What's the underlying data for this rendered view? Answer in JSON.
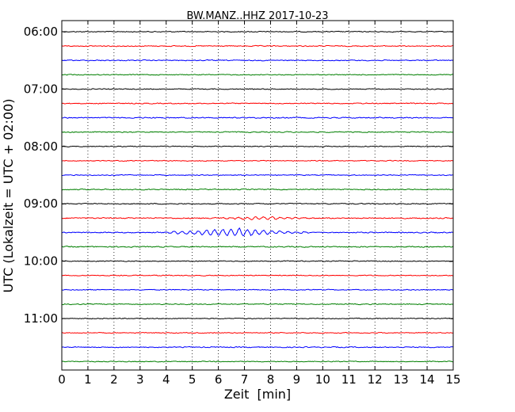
{
  "chart_data": {
    "type": "line",
    "title": "BW.MANZ..HHZ 2017-10-23",
    "xlabel": "Zeit  [min]",
    "ylabel": "UTC (Lokalzeit = UTC + 02:00)",
    "xlim": [
      0,
      15
    ],
    "x_ticks": [
      "0",
      "1",
      "2",
      "3",
      "4",
      "5",
      "6",
      "7",
      "8",
      "9",
      "10",
      "11",
      "12",
      "13",
      "14",
      "15"
    ],
    "y_tick_labels": [
      "06:00",
      "07:00",
      "08:00",
      "09:00",
      "10:00",
      "11:00"
    ],
    "grid": "vertical dotted at each minute",
    "trace_colors": [
      "#000000",
      "#ff0000",
      "#0000ff",
      "#007f00"
    ],
    "traces": [
      {
        "start": "06:00",
        "color": "#000000",
        "amplitude": 0.8
      },
      {
        "start": "06:15",
        "color": "#ff0000",
        "amplitude": 0.9
      },
      {
        "start": "06:30",
        "color": "#0000ff",
        "amplitude": 0.9
      },
      {
        "start": "06:45",
        "color": "#007f00",
        "amplitude": 0.8
      },
      {
        "start": "07:00",
        "color": "#000000",
        "amplitude": 0.8
      },
      {
        "start": "07:15",
        "color": "#ff0000",
        "amplitude": 0.9
      },
      {
        "start": "07:30",
        "color": "#0000ff",
        "amplitude": 1.0
      },
      {
        "start": "07:45",
        "color": "#007f00",
        "amplitude": 0.9
      },
      {
        "start": "08:00",
        "color": "#000000",
        "amplitude": 0.8
      },
      {
        "start": "08:15",
        "color": "#ff0000",
        "amplitude": 0.8
      },
      {
        "start": "08:30",
        "color": "#0000ff",
        "amplitude": 0.8
      },
      {
        "start": "08:45",
        "color": "#007f00",
        "amplitude": 0.9
      },
      {
        "start": "09:00",
        "color": "#000000",
        "amplitude": 0.9
      },
      {
        "start": "09:15",
        "color": "#ff0000",
        "amplitude": 1.0,
        "event": {
          "start_min": 5.5,
          "peak_min": 7.8,
          "end_min": 11.5,
          "amplitude": 2.2
        }
      },
      {
        "start": "09:30",
        "color": "#0000ff",
        "amplitude": 1.0,
        "event": {
          "start_min": 3.5,
          "peak_min": 6.9,
          "end_min": 11.0,
          "amplitude": 5.5
        }
      },
      {
        "start": "09:45",
        "color": "#007f00",
        "amplitude": 1.0
      },
      {
        "start": "10:00",
        "color": "#000000",
        "amplitude": 0.8
      },
      {
        "start": "10:15",
        "color": "#ff0000",
        "amplitude": 0.8
      },
      {
        "start": "10:30",
        "color": "#0000ff",
        "amplitude": 0.8
      },
      {
        "start": "10:45",
        "color": "#007f00",
        "amplitude": 0.9
      },
      {
        "start": "11:00",
        "color": "#000000",
        "amplitude": 0.8
      },
      {
        "start": "11:15",
        "color": "#ff0000",
        "amplitude": 0.8
      },
      {
        "start": "11:30",
        "color": "#0000ff",
        "amplitude": 0.9
      },
      {
        "start": "11:45",
        "color": "#007f00",
        "amplitude": 0.8
      }
    ]
  }
}
